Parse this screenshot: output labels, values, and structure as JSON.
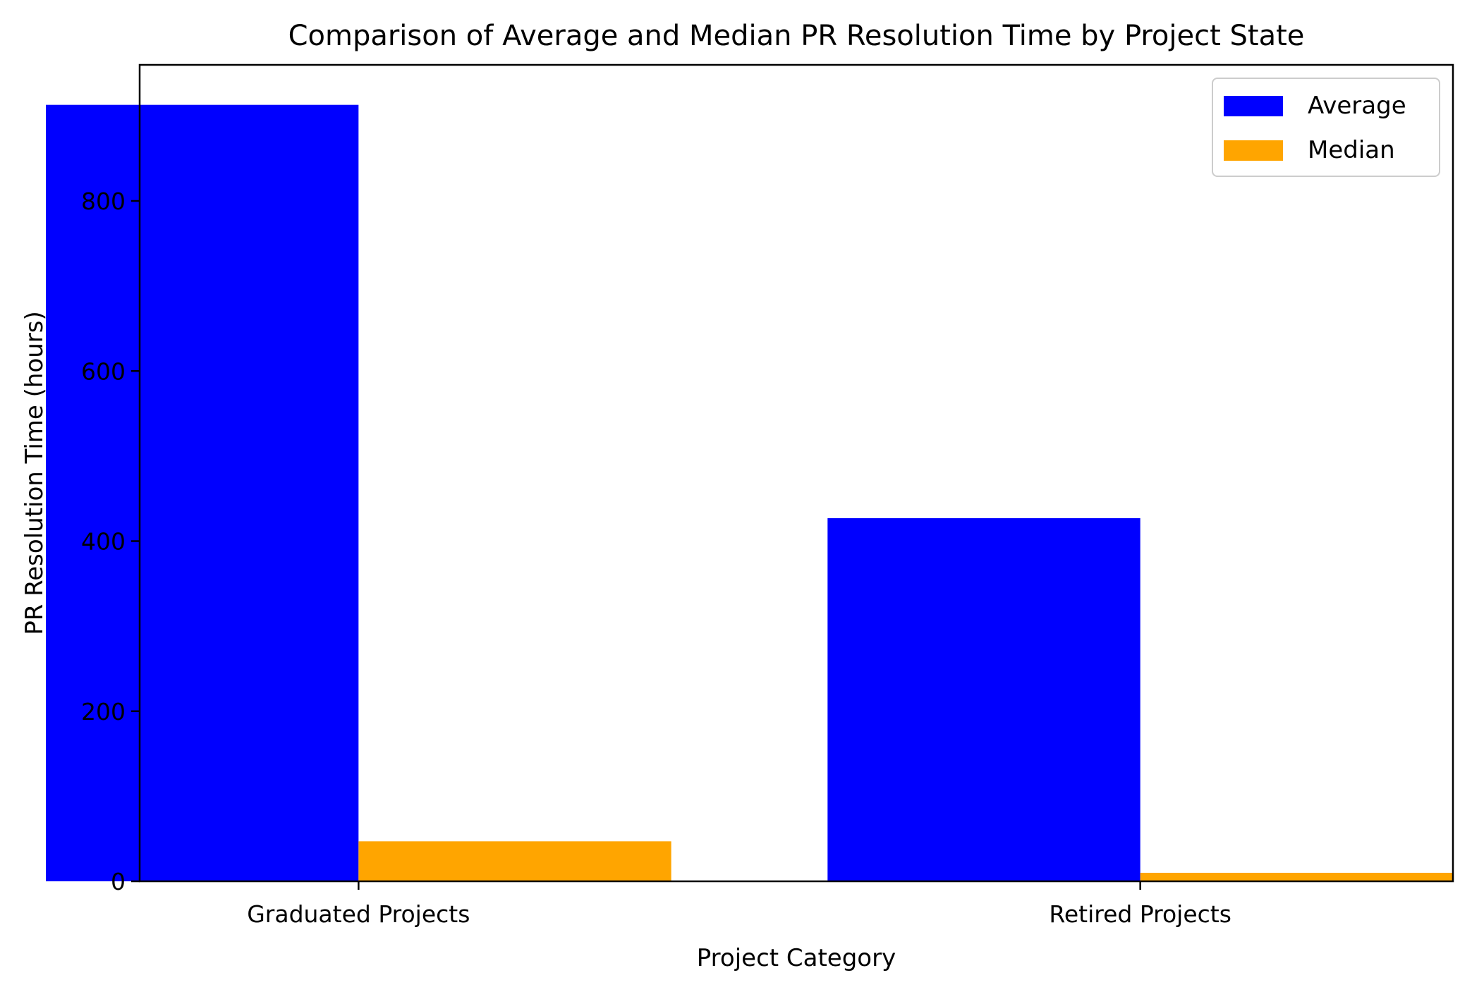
{
  "chart_data": {
    "type": "bar",
    "title": "Comparison of Average and Median PR Resolution Time by Project State",
    "xlabel": "Project Category",
    "ylabel": "PR Resolution Time (hours)",
    "categories": [
      "Graduated Projects",
      "Retired Projects"
    ],
    "series": [
      {
        "name": "Average",
        "color": "#0000ff",
        "values": [
          913,
          427
        ]
      },
      {
        "name": "Median",
        "color": "#ffa500",
        "values": [
          47,
          10
        ]
      }
    ],
    "ylim": [
      0,
      960
    ],
    "yticks": [
      0,
      200,
      400,
      600,
      800
    ],
    "grid": false,
    "legend_position": "top-right"
  }
}
